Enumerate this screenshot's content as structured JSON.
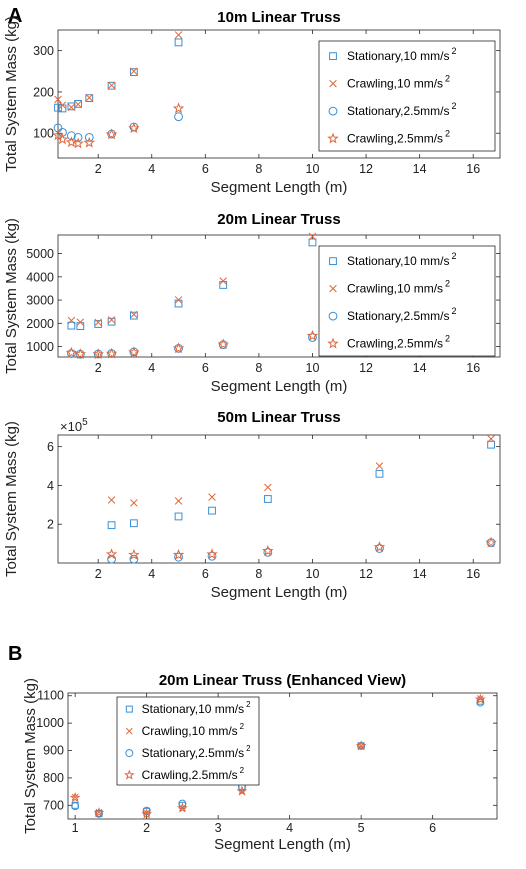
{
  "panel_labels": [
    "A",
    "B"
  ],
  "colors": {
    "blue": "#3b8fd4",
    "orange": "#e0673a"
  },
  "chart_data": [
    {
      "type": "scatter",
      "title": "10m Linear Truss",
      "xlabel": "Segment Length (m)",
      "ylabel": "Total System Mass (kg)",
      "xlim": [
        0.5,
        17
      ],
      "ylim": [
        40,
        350
      ],
      "xticks": [
        2,
        4,
        6,
        8,
        10,
        12,
        14,
        16
      ],
      "yticks": [
        100,
        200,
        300
      ],
      "grid": false,
      "legend_position": "top-right",
      "series": [
        {
          "name": "Stationary,10 mm/s",
          "marker": "square",
          "color": "blue",
          "x": [
            0.5,
            0.667,
            1,
            1.25,
            1.667,
            2.5,
            3.333,
            5
          ],
          "y": [
            162,
            160,
            165,
            171,
            185,
            215,
            248,
            320
          ]
        },
        {
          "name": "Crawling,10 mm/s",
          "marker": "x",
          "color": "orange",
          "x": [
            0.5,
            0.667,
            1,
            1.25,
            1.667,
            2.5,
            3.333,
            5
          ],
          "y": [
            182,
            168,
            163,
            170,
            186,
            216,
            250,
            338
          ]
        },
        {
          "name": "Stationary,2.5mm/s",
          "marker": "circle",
          "color": "blue",
          "x": [
            0.5,
            0.667,
            1,
            1.25,
            1.667,
            2.5,
            3.333,
            5
          ],
          "y": [
            113,
            102,
            94,
            90,
            90,
            98,
            115,
            140
          ]
        },
        {
          "name": "Crawling,2.5mm/s",
          "marker": "star",
          "color": "orange",
          "x": [
            0.5,
            0.667,
            1,
            1.25,
            1.667,
            2.5,
            3.333,
            5
          ],
          "y": [
            95,
            85,
            78,
            75,
            77,
            97,
            112,
            160
          ]
        }
      ]
    },
    {
      "type": "scatter",
      "title": "20m Linear Truss",
      "xlabel": "Segment Length (m)",
      "ylabel": "Total System Mass (kg)",
      "xlim": [
        0.5,
        17
      ],
      "ylim": [
        550,
        5800
      ],
      "xticks": [
        2,
        4,
        6,
        8,
        10,
        12,
        14,
        16
      ],
      "yticks": [
        1000,
        2000,
        3000,
        4000,
        5000
      ],
      "grid": false,
      "legend_position": "top-right",
      "series": [
        {
          "name": "Stationary,10 mm/s",
          "marker": "square",
          "color": "blue",
          "x": [
            1,
            1.333,
            2,
            2.5,
            3.333,
            5,
            6.667,
            10
          ],
          "y": [
            1900,
            1880,
            1970,
            2070,
            2330,
            2850,
            3650,
            5480
          ]
        },
        {
          "name": "Crawling,10 mm/s",
          "marker": "x",
          "color": "orange",
          "x": [
            1,
            1.333,
            2,
            2.5,
            3.333,
            5,
            6.667,
            10
          ],
          "y": [
            2120,
            2050,
            2040,
            2150,
            2380,
            3010,
            3820,
            5740
          ]
        },
        {
          "name": "Stationary,2.5mm/s",
          "marker": "circle",
          "color": "blue",
          "x": [
            1,
            1.333,
            2,
            2.5,
            3.333,
            5,
            6.667,
            10
          ],
          "y": [
            700,
            670,
            680,
            700,
            770,
            920,
            1080,
            1390
          ]
        },
        {
          "name": "Crawling,2.5mm/s",
          "marker": "star",
          "color": "orange",
          "x": [
            1,
            1.333,
            2,
            2.5,
            3.333,
            5,
            6.667,
            10
          ],
          "y": [
            730,
            675,
            670,
            690,
            750,
            920,
            1090,
            1460
          ]
        }
      ]
    },
    {
      "type": "scatter",
      "title": "50m Linear Truss",
      "xlabel": "Segment Length (m)",
      "ylabel": "Total System Mass (kg)",
      "y_multiplier": "×10",
      "y_multiplier_exponent": "5",
      "xlim": [
        0.5,
        17
      ],
      "ylim": [
        0,
        6.6
      ],
      "xticks": [
        2,
        4,
        6,
        8,
        10,
        12,
        14,
        16
      ],
      "yticks": [
        2,
        4,
        6
      ],
      "grid": false,
      "legend_position": "none",
      "series": [
        {
          "name": "Stationary,10 mm/s",
          "marker": "square",
          "color": "blue",
          "x": [
            2.5,
            3.333,
            5,
            6.25,
            8.333,
            12.5,
            16.667
          ],
          "y": [
            1.95,
            2.05,
            2.4,
            2.7,
            3.3,
            4.6,
            6.1
          ]
        },
        {
          "name": "Crawling,10 mm/s",
          "marker": "x",
          "color": "orange",
          "x": [
            2.5,
            3.333,
            5,
            6.25,
            8.333,
            12.5,
            16.667
          ],
          "y": [
            3.25,
            3.1,
            3.2,
            3.4,
            3.9,
            5.0,
            6.4
          ]
        },
        {
          "name": "Stationary,2.5mm/s",
          "marker": "circle",
          "color": "blue",
          "x": [
            2.5,
            3.333,
            5,
            6.25,
            8.333,
            12.5,
            16.667
          ],
          "y": [
            0.2,
            0.2,
            0.3,
            0.35,
            0.55,
            0.75,
            1.05
          ]
        },
        {
          "name": "Crawling,2.5mm/s",
          "marker": "star",
          "color": "orange",
          "x": [
            2.5,
            3.333,
            5,
            6.25,
            8.333,
            12.5,
            16.667
          ],
          "y": [
            0.45,
            0.42,
            0.42,
            0.45,
            0.62,
            0.82,
            1.05
          ]
        }
      ]
    },
    {
      "type": "scatter",
      "title": "20m Linear Truss (Enhanced View)",
      "xlabel": "Segment Length (m)",
      "ylabel": "Total System Mass (kg)",
      "xlim": [
        0.9,
        6.9
      ],
      "ylim": [
        650,
        1110
      ],
      "xticks": [
        1,
        2,
        3,
        4,
        5,
        6
      ],
      "yticks": [
        700,
        800,
        900,
        1000,
        1100
      ],
      "grid": false,
      "legend_position": "top-left",
      "series": [
        {
          "name": "Stationary,10 mm/s",
          "marker": "square",
          "color": "blue",
          "x": [
            1,
            1.333,
            2,
            2.5,
            3.333,
            5,
            6.667
          ],
          "y": [
            700,
            670,
            678,
            700,
            765,
            917,
            1080
          ]
        },
        {
          "name": "Crawling,10 mm/s",
          "marker": "x",
          "color": "orange",
          "x": [
            1,
            1.333,
            2,
            2.5,
            3.333,
            5,
            6.667
          ],
          "y": [
            730,
            675,
            672,
            690,
            750,
            917,
            1090
          ]
        },
        {
          "name": "Stationary,2.5mm/s",
          "marker": "circle",
          "color": "blue",
          "x": [
            1,
            1.333,
            2,
            2.5,
            3.333,
            5,
            6.667
          ],
          "y": [
            697,
            669,
            680,
            706,
            768,
            917,
            1075
          ]
        },
        {
          "name": "Crawling,2.5mm/s",
          "marker": "star",
          "color": "orange",
          "x": [
            1,
            1.333,
            2,
            2.5,
            3.333,
            5,
            6.667
          ],
          "y": [
            728,
            673,
            668,
            690,
            752,
            917,
            1087
          ]
        }
      ]
    }
  ]
}
